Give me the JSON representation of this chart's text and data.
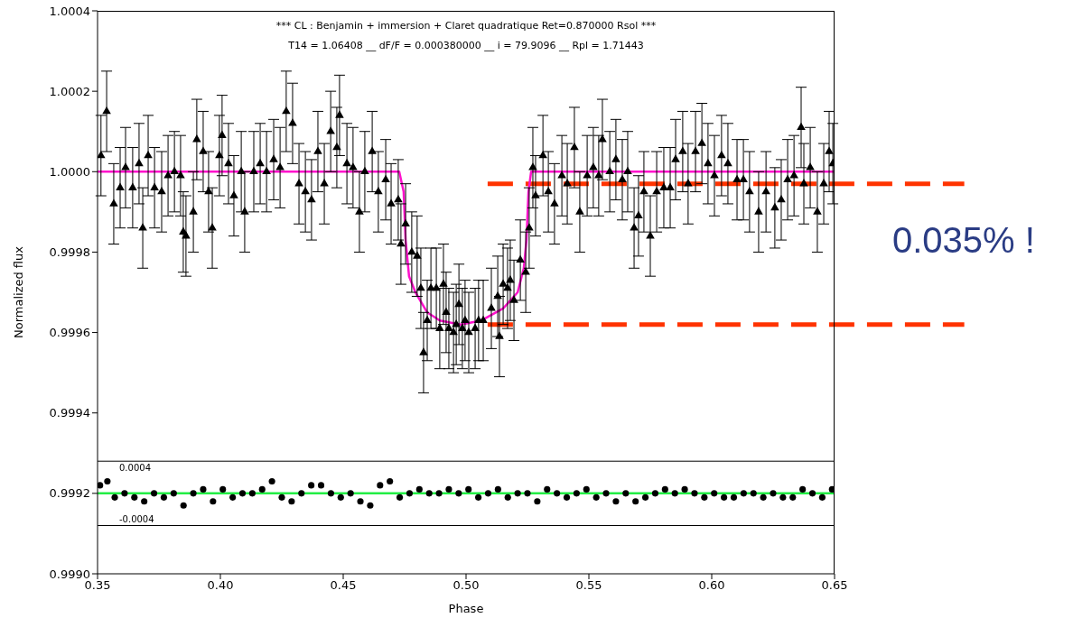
{
  "chart_data": {
    "type": "scatter",
    "title": "*** CL : Benjamin + immersion + Claret quadratique  Ret=0.870000 Rsol ***",
    "subtitle": "T14 = 1.06408 __ dF/F = 0.000380000 __ i = 79.9096 __ Rpl = 1.71443",
    "xlabel": "Phase",
    "ylabel": "Normalized flux",
    "xlim": [
      0.35,
      0.65
    ],
    "xticks": [
      {
        "value": 0.35,
        "label": "0.35"
      },
      {
        "value": 0.4,
        "label": "0.40"
      },
      {
        "value": 0.45,
        "label": "0.45"
      },
      {
        "value": 0.5,
        "label": "0.50"
      },
      {
        "value": 0.55,
        "label": "0.55"
      },
      {
        "value": 0.6,
        "label": "0.60"
      },
      {
        "value": 0.65,
        "label": "0.65"
      }
    ],
    "ylim": [
      0.999,
      1.0004
    ],
    "yticks": [
      {
        "value": 0.999,
        "label": "0.9990"
      },
      {
        "value": 0.9992,
        "label": "0.9992"
      },
      {
        "value": 0.9994,
        "label": "0.9994"
      },
      {
        "value": 0.9996,
        "label": "0.9996"
      },
      {
        "value": 0.9998,
        "label": "0.9998"
      },
      {
        "value": 1,
        "label": "1.0000"
      },
      {
        "value": 1.0002,
        "label": "1.0002"
      },
      {
        "value": 1.0004,
        "label": "1.0004"
      }
    ],
    "y2lim": [
      -0.001,
      0.006
    ],
    "grid": false,
    "legend": false,
    "series": [
      {
        "marker": "triangle",
        "color": "#000000",
        "x": [
          0.3514,
          0.3537,
          0.3566,
          0.3592,
          0.3614,
          0.3643,
          0.3669,
          0.3684,
          0.3706,
          0.3732,
          0.3761,
          0.3787,
          0.3813,
          0.3838,
          0.3849,
          0.386,
          0.389,
          0.3904,
          0.393,
          0.3952,
          0.3967,
          0.3996,
          0.4007,
          0.4033,
          0.4055,
          0.4085,
          0.4099,
          0.4136,
          0.4162,
          0.4188,
          0.4217,
          0.4243,
          0.4268,
          0.4294,
          0.432,
          0.4346,
          0.4371,
          0.4397,
          0.4423,
          0.4449,
          0.4474,
          0.4485,
          0.4515,
          0.454,
          0.4566,
          0.4588,
          0.4618,
          0.4643,
          0.4673,
          0.4695,
          0.4724,
          0.4735,
          0.4754,
          0.4779,
          0.4801,
          0.4816,
          0.4827,
          0.4842,
          0.4857,
          0.4879,
          0.4893,
          0.4908,
          0.4919,
          0.493,
          0.4949,
          0.496,
          0.4971,
          0.4985,
          0.4996,
          0.5011,
          0.5037,
          0.5051,
          0.507,
          0.5103,
          0.5129,
          0.5136,
          0.5151,
          0.5169,
          0.518,
          0.5195,
          0.5221,
          0.5243,
          0.5257,
          0.5272,
          0.5283,
          0.5313,
          0.5335,
          0.536,
          0.539,
          0.5412,
          0.5441,
          0.5463,
          0.5493,
          0.5518,
          0.554,
          0.5555,
          0.5585,
          0.561,
          0.5636,
          0.5658,
          0.5684,
          0.5702,
          0.5724,
          0.575,
          0.5776,
          0.5805,
          0.5831,
          0.5853,
          0.5882,
          0.5904,
          0.5934,
          0.596,
          0.5985,
          0.6011,
          0.604,
          0.6066,
          0.6103,
          0.6129,
          0.6154,
          0.6191,
          0.6221,
          0.6257,
          0.6283,
          0.6309,
          0.6335,
          0.6364,
          0.6375,
          0.6401,
          0.643,
          0.6456,
          0.6478,
          0.6493
        ],
        "values": [
          1.00004,
          1.00015,
          0.99992,
          0.99996,
          1.00001,
          0.99996,
          1.00002,
          0.99986,
          1.00004,
          0.99996,
          0.99995,
          0.99999,
          1.0,
          0.99999,
          0.99985,
          0.99984,
          0.9999,
          1.00008,
          1.00005,
          0.99995,
          0.99986,
          1.00004,
          1.00009,
          1.00002,
          0.99994,
          1.0,
          0.9999,
          1.0,
          1.00002,
          1.0,
          1.00003,
          1.00001,
          1.00015,
          1.00012,
          0.99997,
          0.99995,
          0.99993,
          1.00005,
          0.99997,
          1.0001,
          1.00006,
          1.00014,
          1.00002,
          1.00001,
          0.9999,
          1.0,
          1.00005,
          0.99995,
          0.99998,
          0.99992,
          0.99993,
          0.99982,
          0.99987,
          0.9998,
          0.99979,
          0.99971,
          0.99955,
          0.99963,
          0.99971,
          0.99971,
          0.99961,
          0.99972,
          0.99965,
          0.99961,
          0.9996,
          0.99962,
          0.99967,
          0.99961,
          0.99963,
          0.9996,
          0.99961,
          0.99963,
          0.99963,
          0.99966,
          0.99969,
          0.99959,
          0.99972,
          0.99971,
          0.99973,
          0.99968,
          0.99978,
          0.99975,
          0.99986,
          1.00001,
          0.99994,
          1.00004,
          0.99995,
          0.99992,
          0.99999,
          0.99997,
          1.00006,
          0.9999,
          0.99999,
          1.00001,
          0.99999,
          1.00008,
          1.0,
          1.00003,
          0.99998,
          1.0,
          0.99986,
          0.99989,
          0.99995,
          0.99984,
          0.99995,
          0.99996,
          0.99996,
          1.00003,
          1.00005,
          0.99997,
          1.00005,
          1.00007,
          1.00002,
          0.99999,
          1.00004,
          1.00002,
          0.99998,
          0.99998,
          0.99995,
          0.9999,
          0.99995,
          0.99991,
          0.99993,
          0.99998,
          0.99999,
          1.00011,
          0.99997,
          1.00001,
          0.9999,
          0.99997,
          1.00005,
          1.00002
        ],
        "errors": [
          0.0001,
          0.0001,
          0.0001,
          0.0001,
          0.0001,
          0.0001,
          0.0001,
          0.0001,
          0.0001,
          0.0001,
          0.0001,
          0.0001,
          0.0001,
          0.0001,
          0.0001,
          0.0001,
          0.0001,
          0.0001,
          0.0001,
          0.0001,
          0.0001,
          0.0001,
          0.0001,
          0.0001,
          0.0001,
          0.0001,
          0.0001,
          0.0001,
          0.0001,
          0.0001,
          0.0001,
          0.0001,
          0.0001,
          0.0001,
          0.0001,
          0.0001,
          0.0001,
          0.0001,
          0.0001,
          0.0001,
          0.0001,
          0.0001,
          0.0001,
          0.0001,
          0.0001,
          0.0001,
          0.0001,
          0.0001,
          0.0001,
          0.0001,
          0.0001,
          0.0001,
          0.0001,
          0.0001,
          0.0001,
          0.0001,
          0.0001,
          0.0001,
          0.0001,
          0.0001,
          0.0001,
          0.0001,
          0.0001,
          0.0001,
          0.0001,
          0.0001,
          0.0001,
          0.0001,
          0.0001,
          0.0001,
          0.0001,
          0.0001,
          0.0001,
          0.0001,
          0.0001,
          0.0001,
          0.0001,
          0.0001,
          0.0001,
          0.0001,
          0.0001,
          0.0001,
          0.0001,
          0.0001,
          0.0001,
          0.0001,
          0.0001,
          0.0001,
          0.0001,
          0.0001,
          0.0001,
          0.0001,
          0.0001,
          0.0001,
          0.0001,
          0.0001,
          0.0001,
          0.0001,
          0.0001,
          0.0001,
          0.0001,
          0.0001,
          0.0001,
          0.0001,
          0.0001,
          0.0001,
          0.0001,
          0.0001,
          0.0001,
          0.0001,
          0.0001,
          0.0001,
          0.0001,
          0.0001,
          0.0001,
          0.0001,
          0.0001,
          0.0001,
          0.0001,
          0.0001,
          0.0001,
          0.0001,
          0.0001,
          0.0001,
          0.0001,
          0.0001,
          0.0001,
          0.0001,
          0.0001,
          0.0001,
          0.0001,
          0.0001
        ]
      },
      {
        "type": "line",
        "color": "#ff11cc",
        "x": [
          0.35,
          0.4728,
          0.4746,
          0.4754,
          0.4768,
          0.4794,
          0.4842,
          0.4893,
          0.4978,
          0.5063,
          0.5151,
          0.521,
          0.5235,
          0.5246,
          0.5254,
          0.5265,
          0.65
        ],
        "values": [
          1.0,
          1.0,
          0.99995,
          0.99983,
          0.99974,
          0.9997,
          0.99965,
          0.99963,
          0.99962,
          0.99963,
          0.99966,
          0.9997,
          0.99976,
          0.99983,
          0.99995,
          1.0,
          1.0
        ]
      },
      {
        "type": "scatter",
        "marker": "circle",
        "color": "#000000",
        "axis": "y2",
        "x": [
          0.351,
          0.354,
          0.357,
          0.361,
          0.365,
          0.369,
          0.373,
          0.377,
          0.381,
          0.385,
          0.389,
          0.393,
          0.397,
          0.401,
          0.405,
          0.409,
          0.413,
          0.417,
          0.421,
          0.425,
          0.429,
          0.433,
          0.437,
          0.441,
          0.445,
          0.449,
          0.453,
          0.457,
          0.461,
          0.465,
          0.469,
          0.473,
          0.477,
          0.481,
          0.485,
          0.489,
          0.493,
          0.497,
          0.501,
          0.505,
          0.509,
          0.513,
          0.517,
          0.521,
          0.525,
          0.529,
          0.533,
          0.537,
          0.541,
          0.545,
          0.549,
          0.553,
          0.557,
          0.561,
          0.565,
          0.569,
          0.573,
          0.577,
          0.581,
          0.585,
          0.589,
          0.593,
          0.597,
          0.601,
          0.605,
          0.609,
          0.613,
          0.617,
          0.621,
          0.625,
          0.629,
          0.633,
          0.637,
          0.641,
          0.645,
          0.649
        ],
        "values": [
          0.0001,
          0.00015,
          -5e-05,
          0,
          -5e-05,
          -0.0001,
          0,
          -5e-05,
          0,
          -0.00015,
          0,
          5e-05,
          -0.0001,
          5e-05,
          -5e-05,
          0,
          0,
          5e-05,
          0.00015,
          -5e-05,
          -0.0001,
          0,
          0.0001,
          0.0001,
          0,
          -5e-05,
          0,
          -0.0001,
          -0.00015,
          0.0001,
          0.00015,
          -5e-05,
          0,
          5e-05,
          0,
          0,
          5e-05,
          0,
          5e-05,
          -5e-05,
          0,
          5e-05,
          -5e-05,
          0,
          0,
          -0.0001,
          5e-05,
          0,
          -5e-05,
          0,
          5e-05,
          -5e-05,
          0,
          -0.0001,
          0,
          -0.0001,
          -5e-05,
          0,
          5e-05,
          0,
          5e-05,
          0,
          -5e-05,
          0,
          -5e-05,
          -5e-05,
          0,
          0,
          -5e-05,
          0,
          -5e-05,
          -5e-05,
          5e-05,
          0,
          -5e-05,
          5e-05
        ]
      },
      {
        "type": "line",
        "color": "#22ee44",
        "axis": "y2",
        "x": [
          0.35,
          0.65
        ],
        "values": [
          0,
          0
        ]
      }
    ],
    "ref_lines": [
      {
        "axis": "y2",
        "value": 0.0004,
        "label": "0.0004",
        "color": "#000000",
        "line_style": "solid"
      },
      {
        "axis": "y2",
        "value": -0.0004,
        "label": "-0.0004",
        "color": "#000000",
        "line_style": "solid"
      },
      {
        "axis": "y",
        "value": 0.99997,
        "color": "#ff3300",
        "line_style": "dashed"
      },
      {
        "axis": "y",
        "value": 0.99962,
        "color": "#ff3300",
        "line_style": "dashed"
      }
    ],
    "annotations": [
      "0.035% !"
    ]
  }
}
